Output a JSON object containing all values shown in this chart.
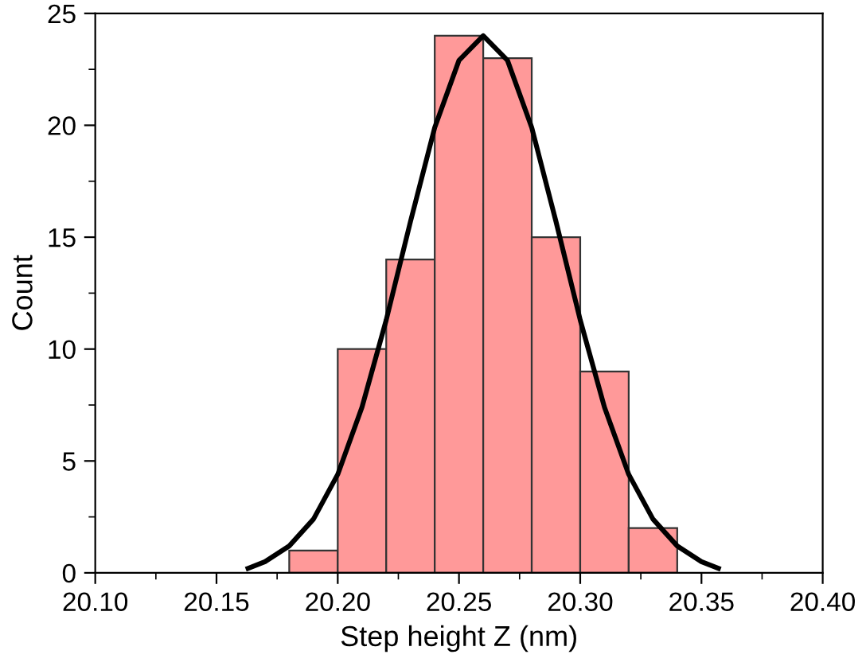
{
  "chart_data": {
    "type": "histogram",
    "xlabel": "Step height Z (nm)",
    "ylabel": "Count",
    "bins": [
      20.18,
      20.2,
      20.22,
      20.24,
      20.26,
      20.28,
      20.3,
      20.32,
      20.34
    ],
    "values": [
      1,
      10,
      14,
      24,
      23,
      15,
      9,
      2
    ],
    "color": "#ff9999",
    "series": [
      {
        "type": "line",
        "color": "#000000",
        "x": [
          20.163,
          20.17,
          20.18,
          20.19,
          20.2,
          20.21,
          20.22,
          20.23,
          20.24,
          20.25,
          20.26,
          20.27,
          20.28,
          20.29,
          20.3,
          20.31,
          20.32,
          20.33,
          20.34,
          20.35,
          20.357
        ],
        "values": [
          0.2,
          0.5,
          1.2,
          2.4,
          4.4,
          7.4,
          11.3,
          15.7,
          19.9,
          22.9,
          24,
          22.9,
          19.9,
          15.7,
          11.3,
          7.4,
          4.4,
          2.4,
          1.2,
          0.5,
          0.2
        ]
      }
    ],
    "xlim": [
      20.1,
      20.4
    ],
    "xticks": [
      {
        "value": 20.1,
        "label": "20.10"
      },
      {
        "value": 20.15,
        "label": "20.15"
      },
      {
        "value": 20.2,
        "label": "20.20"
      },
      {
        "value": 20.25,
        "label": "20.25"
      },
      {
        "value": 20.3,
        "label": "20.30"
      },
      {
        "value": 20.35,
        "label": "20.35"
      },
      {
        "value": 20.4,
        "label": "20.40"
      }
    ],
    "ylim": [
      0,
      25
    ],
    "yticks": [
      0,
      5,
      10,
      15,
      20,
      25
    ],
    "grid": false,
    "legend": false
  }
}
